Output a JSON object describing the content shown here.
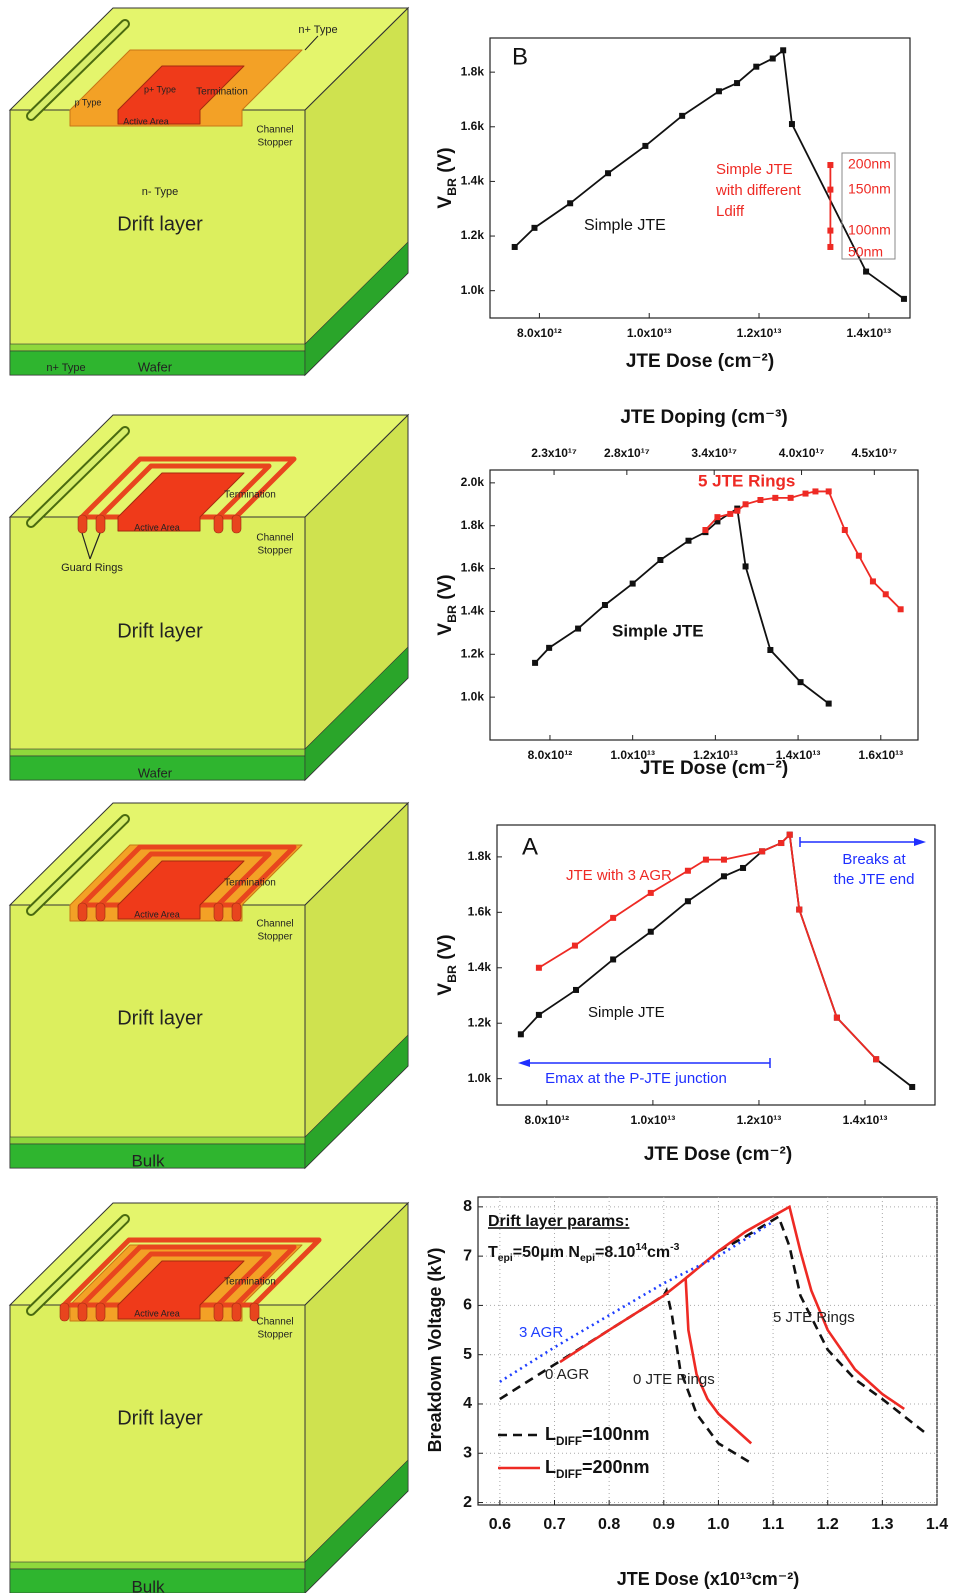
{
  "diagrams": [
    {
      "labels": [
        "n+ Type",
        "p Type",
        "p+ Type",
        "Termination",
        "Active Area",
        "Channel",
        "Stopper",
        "n- Type",
        "Drift layer",
        "n+ Type",
        "Wafer"
      ]
    },
    {
      "labels": [
        "Termination",
        "Active Area",
        "Channel",
        "Stopper",
        "Guard Rings",
        "Drift layer",
        "Wafer"
      ]
    },
    {
      "labels": [
        "Termination",
        "Active Area",
        "Channel",
        "Stopper",
        "Drift layer",
        "Bulk"
      ]
    },
    {
      "labels": [
        "Termination",
        "Active Area",
        "Channel",
        "Stopper",
        "Drift layer",
        "Bulk"
      ]
    }
  ],
  "chart_data": [
    {
      "type": "line",
      "panel_label": "B",
      "x_label": "JTE Dose (cm⁻²)",
      "y_label": [
        "V",
        "BR",
        " (V)"
      ],
      "grid": false,
      "xlim": [
        7100000000000.0,
        14750000000000.0
      ],
      "xticks": [
        {
          "value": 8000000000000.0,
          "label": "8.0x10¹²"
        },
        {
          "value": 10000000000000.0,
          "label": "1.0x10¹³"
        },
        {
          "value": 12000000000000.0,
          "label": "1.2x10¹³"
        },
        {
          "value": 14000000000000.0,
          "label": "1.4x10¹³"
        }
      ],
      "ylim": [
        900,
        1925
      ],
      "yticks": [
        {
          "value": 1000,
          "label": "1.0k"
        },
        {
          "value": 1200,
          "label": "1.2k"
        },
        {
          "value": 1400,
          "label": "1.4k"
        },
        {
          "value": 1600,
          "label": "1.6k"
        },
        {
          "value": 1800,
          "label": "1.8k"
        }
      ],
      "series": [
        {
          "name": [
            "Simple JTE"
          ],
          "color": "#111111",
          "markers": true,
          "dash": "solid",
          "x": [
            7550000000000.0,
            7910000000000.0,
            8560000000000.0,
            9250000000000.0,
            9930000000000.0,
            10600000000000.0,
            11270000000000.0,
            11600000000000.0,
            11950000000000.0,
            12250000000000.0,
            12440000000000.0,
            12600000000000.0,
            13950000000000.0,
            14640000000000.0
          ],
          "values": [
            1160,
            1230,
            1320,
            1430,
            1530,
            1640,
            1730,
            1760,
            1820,
            1850,
            1880,
            1610,
            1070,
            970
          ]
        },
        {
          "name": [
            "Simple JTE",
            "with different",
            "Ldiff"
          ],
          "color": "#ee2a24",
          "markers": true,
          "dash": "solid",
          "x": [
            13300000000000.0,
            13300000000000.0,
            13300000000000.0,
            13300000000000.0
          ],
          "values": [
            1460,
            1370,
            1220,
            1160
          ],
          "point_labels": [
            "200nm",
            "150nm",
            "100nm",
            "50nm"
          ]
        }
      ]
    },
    {
      "type": "line",
      "x_label": "JTE Dose (cm⁻²)",
      "y_label": [
        "V",
        "BR",
        " (V)"
      ],
      "x2_label": "JTE Doping (cm⁻³)",
      "grid": false,
      "xlim": [
        6550000000000.0,
        16900000000000.0
      ],
      "xticks": [
        {
          "value": 8000000000000.0,
          "label": "8.0x10¹²"
        },
        {
          "value": 10000000000000.0,
          "label": "1.0x10¹³"
        },
        {
          "value": 12000000000000.0,
          "label": "1.2x10¹³"
        },
        {
          "value": 14000000000000.0,
          "label": "1.4x10¹³"
        },
        {
          "value": 16000000000000.0,
          "label": "1.6x10¹³"
        }
      ],
      "x2lim": [
        1.86e+17,
        4.8e+17
      ],
      "x2ticks": [
        {
          "value": 2.3e+17,
          "label": "2.3x10¹⁷"
        },
        {
          "value": 2.8e+17,
          "label": "2.8x10¹⁷"
        },
        {
          "value": 3.4e+17,
          "label": "3.4x10¹⁷"
        },
        {
          "value": 4e+17,
          "label": "4.0x10¹⁷"
        },
        {
          "value": 4.5e+17,
          "label": "4.5x10¹⁷"
        }
      ],
      "ylim": [
        800,
        2060
      ],
      "yticks": [
        {
          "value": 1000,
          "label": "1.0k"
        },
        {
          "value": 1200,
          "label": "1.2k"
        },
        {
          "value": 1400,
          "label": "1.4k"
        },
        {
          "value": 1600,
          "label": "1.6k"
        },
        {
          "value": 1800,
          "label": "1.8k"
        },
        {
          "value": 2000,
          "label": "2.0k"
        }
      ],
      "series": [
        {
          "name": [
            "Simple JTE"
          ],
          "color": "#111111",
          "markers": true,
          "dash": "solid",
          "x": [
            7640000000000.0,
            7980000000000.0,
            8680000000000.0,
            9330000000000.0,
            10000000000000.0,
            10670000000000.0,
            11350000000000.0,
            11760000000000.0,
            12050000000000.0,
            12530000000000.0,
            12730000000000.0,
            13330000000000.0,
            14060000000000.0,
            14740000000000.0
          ],
          "values": [
            1160,
            1230,
            1320,
            1430,
            1530,
            1640,
            1730,
            1770,
            1820,
            1880,
            1610,
            1220,
            1070,
            970
          ]
        },
        {
          "name": [
            "5 JTE Rings"
          ],
          "color": "#ee2a24",
          "markers": true,
          "dash": "solid",
          "x": [
            11760000000000.0,
            12050000000000.0,
            12360000000000.0,
            12530000000000.0,
            12730000000000.0,
            13090000000000.0,
            13450000000000.0,
            13820000000000.0,
            14180000000000.0,
            14420000000000.0,
            14740000000000.0,
            15130000000000.0,
            15470000000000.0,
            15810000000000.0,
            16120000000000.0,
            16480000000000.0
          ],
          "values": [
            1780,
            1840,
            1855,
            1870,
            1900,
            1920,
            1930,
            1930,
            1950,
            1960,
            1960,
            1780,
            1660,
            1540,
            1480,
            1410
          ]
        }
      ]
    },
    {
      "type": "line",
      "panel_label": "A",
      "x_label": "JTE Dose (cm⁻²)",
      "y_label": [
        "V",
        "BR",
        " (V)"
      ],
      "grid": false,
      "xlim": [
        7060000000000.0,
        15320000000000.0
      ],
      "xticks": [
        {
          "value": 8000000000000.0,
          "label": "8.0x10¹²"
        },
        {
          "value": 10000000000000.0,
          "label": "1.0x10¹³"
        },
        {
          "value": 12000000000000.0,
          "label": "1.2x10¹³"
        },
        {
          "value": 14000000000000.0,
          "label": "1.4x10¹³"
        }
      ],
      "ylim": [
        905,
        1915
      ],
      "yticks": [
        {
          "value": 1000,
          "label": "1.0k"
        },
        {
          "value": 1200,
          "label": "1.2k"
        },
        {
          "value": 1400,
          "label": "1.4k"
        },
        {
          "value": 1600,
          "label": "1.6k"
        },
        {
          "value": 1800,
          "label": "1.8k"
        }
      ],
      "series": [
        {
          "name": [
            "Simple JTE"
          ],
          "color": "#111111",
          "markers": true,
          "dash": "solid",
          "x": [
            7510000000000.0,
            7850000000000.0,
            8550000000000.0,
            9250000000000.0,
            9960000000000.0,
            10660000000000.0,
            11340000000000.0,
            11700000000000.0,
            12060000000000.0,
            12420000000000.0,
            12580000000000.0,
            12760000000000.0,
            13470000000000.0,
            14210000000000.0,
            14890000000000.0
          ],
          "values": [
            1160,
            1230,
            1320,
            1430,
            1530,
            1640,
            1730,
            1760,
            1820,
            1850,
            1880,
            1610,
            1220,
            1070,
            970
          ]
        },
        {
          "name": [
            "JTE with 3 AGR"
          ],
          "color": "#ee2a24",
          "markers": true,
          "dash": "solid",
          "x": [
            7850000000000.0,
            8530000000000.0,
            9250000000000.0,
            9960000000000.0,
            10660000000000.0,
            11000000000000.0,
            11340000000000.0,
            12060000000000.0,
            12420000000000.0,
            12580000000000.0,
            12760000000000.0,
            13470000000000.0,
            14210000000000.0
          ],
          "values": [
            1400,
            1480,
            1580,
            1670,
            1750,
            1790,
            1790,
            1820,
            1850,
            1880,
            1610,
            1220,
            1070
          ]
        }
      ],
      "annotations": [
        {
          "lines": [
            "Breaks at",
            "the JTE end"
          ],
          "color": "#1f2fff"
        },
        {
          "lines": [
            "Emax at the P-JTE junction"
          ],
          "color": "#1f2fff"
        }
      ]
    },
    {
      "type": "line",
      "x_label": "JTE Dose (x10¹³cm⁻²)",
      "y_label": "Breakdown Voltage (kV)",
      "grid": true,
      "xlim": [
        0.56,
        1.4
      ],
      "xticks": [
        0.6,
        0.7,
        0.8,
        0.9,
        {
          "value": 1,
          "label": "1.0"
        },
        1.1,
        1.2,
        1.3,
        1.4
      ],
      "ylim": [
        1.95,
        8.2
      ],
      "yticks": [
        2,
        3,
        4,
        5,
        6,
        7,
        8
      ],
      "series": [
        {
          "color": "#111111",
          "markers": false,
          "dash": "dashed",
          "x": [
            0.6,
            0.7,
            0.8,
            0.9,
            0.905,
            0.915,
            0.93,
            0.96,
            1.0,
            1.06
          ],
          "values": [
            4.1,
            4.8,
            5.5,
            6.2,
            6.3,
            5.8,
            4.7,
            3.8,
            3.2,
            2.8
          ]
        },
        {
          "color": "#ee2a24",
          "markers": false,
          "dash": "solid",
          "x": [
            0.71,
            0.8,
            0.9,
            0.94,
            0.945,
            0.96,
            0.98,
            1.0,
            1.06
          ],
          "values": [
            4.85,
            5.5,
            6.2,
            6.55,
            5.5,
            4.6,
            4.1,
            3.8,
            3.2
          ]
        },
        {
          "color": "#111111",
          "markers": false,
          "dash": "dashed",
          "x": [
            1.0,
            1.05,
            1.11,
            1.13,
            1.15,
            1.2,
            1.25,
            1.3,
            1.38
          ],
          "values": [
            7.1,
            7.4,
            7.8,
            7.2,
            6.2,
            5.1,
            4.5,
            4.1,
            3.4
          ]
        },
        {
          "color": "#ee2a24",
          "markers": false,
          "dash": "solid",
          "x": [
            0.94,
            1.0,
            1.05,
            1.13,
            1.15,
            1.17,
            1.2,
            1.25,
            1.3,
            1.34
          ],
          "values": [
            6.55,
            7.1,
            7.5,
            8.0,
            7.1,
            6.3,
            5.5,
            4.7,
            4.2,
            3.9
          ]
        },
        {
          "color": "#1f3fff",
          "markers": false,
          "dash": "dotted",
          "x": [
            0.6,
            0.7,
            0.8,
            0.9,
            1.0,
            1.1
          ],
          "values": [
            4.45,
            5.15,
            5.8,
            6.45,
            7.0,
            7.7
          ]
        }
      ],
      "legend": [
        {
          "parts": [
            "L",
            "DIFF",
            "=100nm"
          ],
          "color": "#111111",
          "dash": "dashed"
        },
        {
          "parts": [
            "L",
            "DIFF",
            "=200nm"
          ],
          "color": "#ee2a24",
          "dash": "solid"
        }
      ],
      "params": {
        "title": "Drift layer params:",
        "parts": [
          "T",
          "epi",
          "=50μm N",
          "epi",
          "=8.10",
          "14",
          "cm",
          "-3"
        ]
      },
      "annotations": [
        {
          "lines": [
            "3 AGR"
          ],
          "color": "#1f3fff"
        },
        {
          "lines": [
            "0 AGR"
          ],
          "color": "#222222"
        },
        {
          "lines": [
            "0 JTE Rings"
          ],
          "color": "#222222"
        },
        {
          "lines": [
            "5 JTE Rings"
          ],
          "color": "#222222"
        }
      ]
    }
  ]
}
